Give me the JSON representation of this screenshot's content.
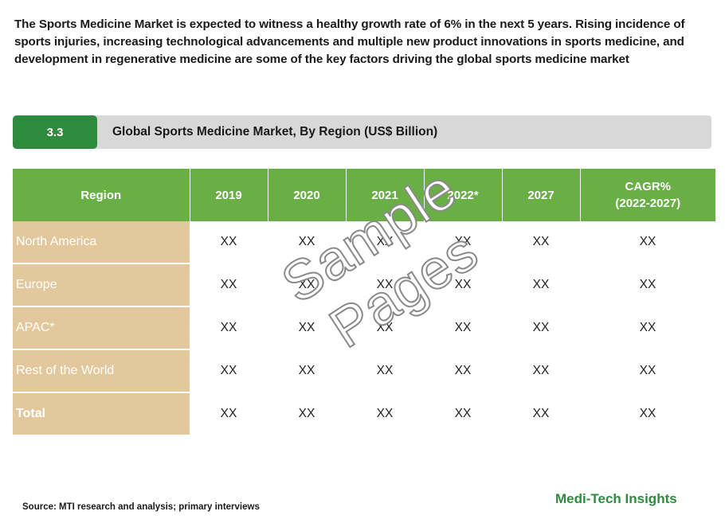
{
  "intro": "The Sports Medicine Market is expected to witness a healthy growth rate of 6% in the next 5 years. Rising incidence of sports injuries, increasing technological advancements and multiple new product innovations in sports medicine, and development in regenerative medicine are some of the key factors driving the global sports medicine market",
  "section": {
    "number": "3.3",
    "title": "Global Sports Medicine Market, By Region (US$ Billion)"
  },
  "table": {
    "headers": [
      "Region",
      "2019",
      "2020",
      "2021",
      "2022*",
      "2027",
      "CAGR%",
      "(2022-2027)"
    ],
    "rows": [
      {
        "region": "North America",
        "values": [
          "XX",
          "XX",
          "XX",
          "XX",
          "XX",
          "XX"
        ]
      },
      {
        "region": "Europe",
        "values": [
          "XX",
          "XX",
          "XX",
          "XX",
          "XX",
          "XX"
        ]
      },
      {
        "region": "APAC*",
        "values": [
          "XX",
          "XX",
          "XX",
          "XX",
          "XX",
          "XX"
        ]
      },
      {
        "region": "Rest of the World",
        "values": [
          "XX",
          "XX",
          "XX",
          "XX",
          "XX",
          "XX"
        ]
      },
      {
        "region": "Total",
        "values": [
          "XX",
          "XX",
          "XX",
          "XX",
          "XX",
          "XX"
        ]
      }
    ]
  },
  "watermark": "Sample Pages",
  "source": "Source: MTI research and analysis; primary interviews",
  "brand": "Medi-Tech Insights",
  "colors": {
    "green_header": "#6aaf46",
    "dark_green": "#2e8b3e",
    "region_tan": "#e2c89c",
    "section_gray": "#d8d8d8"
  }
}
